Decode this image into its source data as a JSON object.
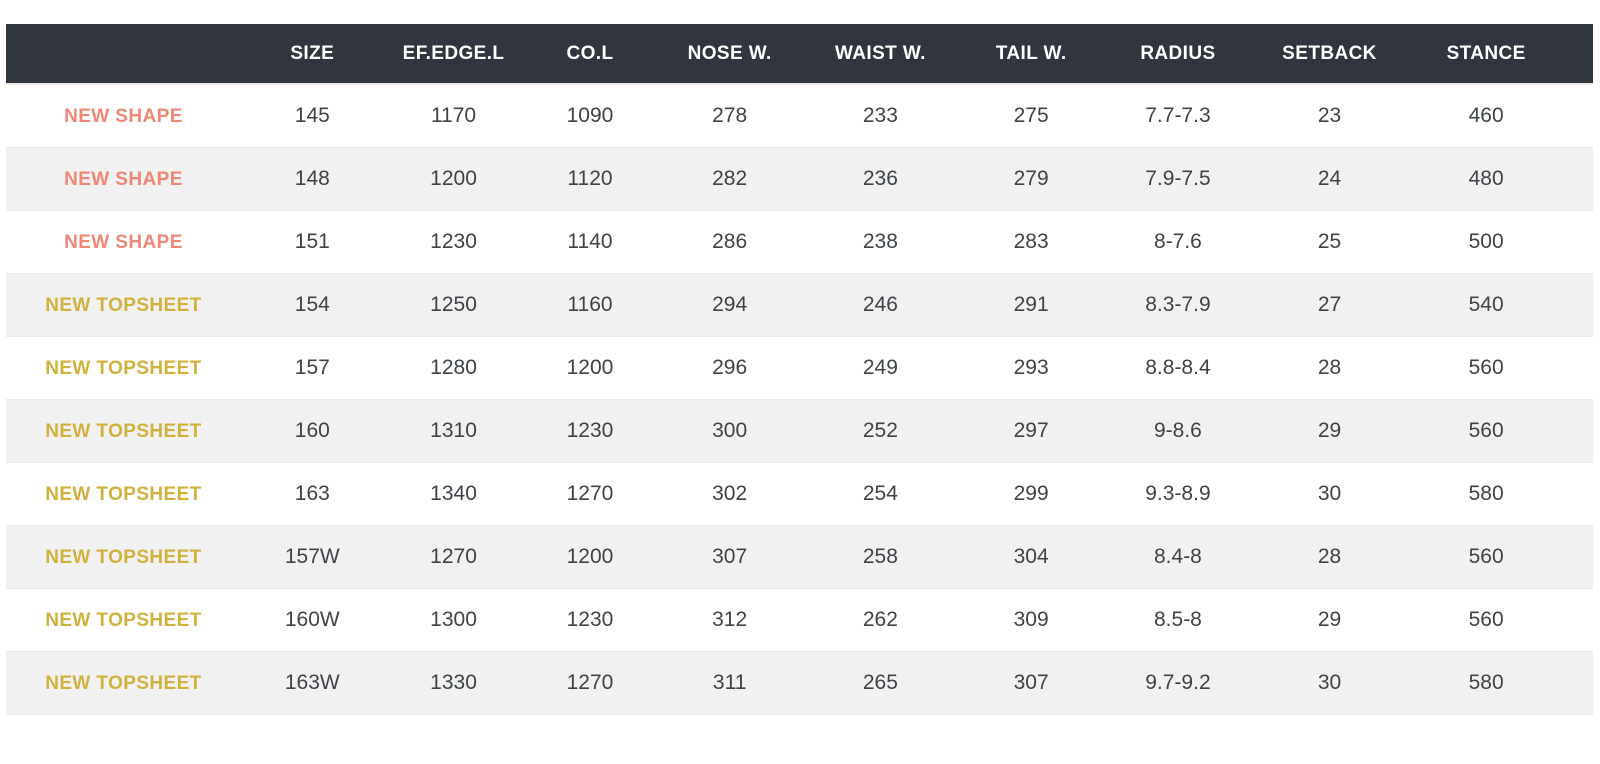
{
  "chart_data": {
    "type": "table",
    "columns": [
      "",
      "SIZE",
      "EF.EDGE.L",
      "CO.L",
      "NOSE W.",
      "WAIST W.",
      "TAIL W.",
      "RADIUS",
      "SETBACK",
      "STANCE"
    ],
    "rows": [
      {
        "tag": "NEW SHAPE",
        "tag_style": "new_shape",
        "values": [
          "145",
          "1170",
          "1090",
          "278",
          "233",
          "275",
          "7.7-7.3",
          "23",
          "460"
        ]
      },
      {
        "tag": "NEW SHAPE",
        "tag_style": "new_shape",
        "values": [
          "148",
          "1200",
          "1120",
          "282",
          "236",
          "279",
          "7.9-7.5",
          "24",
          "480"
        ]
      },
      {
        "tag": "NEW SHAPE",
        "tag_style": "new_shape",
        "values": [
          "151",
          "1230",
          "1140",
          "286",
          "238",
          "283",
          "8-7.6",
          "25",
          "500"
        ]
      },
      {
        "tag": "NEW TOPSHEET",
        "tag_style": "new_topsheet",
        "values": [
          "154",
          "1250",
          "1160",
          "294",
          "246",
          "291",
          "8.3-7.9",
          "27",
          "540"
        ]
      },
      {
        "tag": "NEW TOPSHEET",
        "tag_style": "new_topsheet",
        "values": [
          "157",
          "1280",
          "1200",
          "296",
          "249",
          "293",
          "8.8-8.4",
          "28",
          "560"
        ]
      },
      {
        "tag": "NEW TOPSHEET",
        "tag_style": "new_topsheet",
        "values": [
          "160",
          "1310",
          "1230",
          "300",
          "252",
          "297",
          "9-8.6",
          "29",
          "560"
        ]
      },
      {
        "tag": "NEW TOPSHEET",
        "tag_style": "new_topsheet",
        "values": [
          "163",
          "1340",
          "1270",
          "302",
          "254",
          "299",
          "9.3-8.9",
          "30",
          "580"
        ]
      },
      {
        "tag": "NEW TOPSHEET",
        "tag_style": "new_topsheet",
        "values": [
          "157W",
          "1270",
          "1200",
          "307",
          "258",
          "304",
          "8.4-8",
          "28",
          "560"
        ]
      },
      {
        "tag": "NEW TOPSHEET",
        "tag_style": "new_topsheet",
        "values": [
          "160W",
          "1300",
          "1230",
          "312",
          "262",
          "309",
          "8.5-8",
          "29",
          "560"
        ]
      },
      {
        "tag": "NEW TOPSHEET",
        "tag_style": "new_topsheet",
        "values": [
          "163W",
          "1330",
          "1270",
          "311",
          "265",
          "307",
          "9.7-9.2",
          "30",
          "580"
        ]
      }
    ]
  },
  "colors": {
    "header_bg": "#31363e",
    "header_text": "#ffffff",
    "new_shape": "#ee8775",
    "new_topsheet": "#d1b13c",
    "cell_text": "#3e4347"
  }
}
